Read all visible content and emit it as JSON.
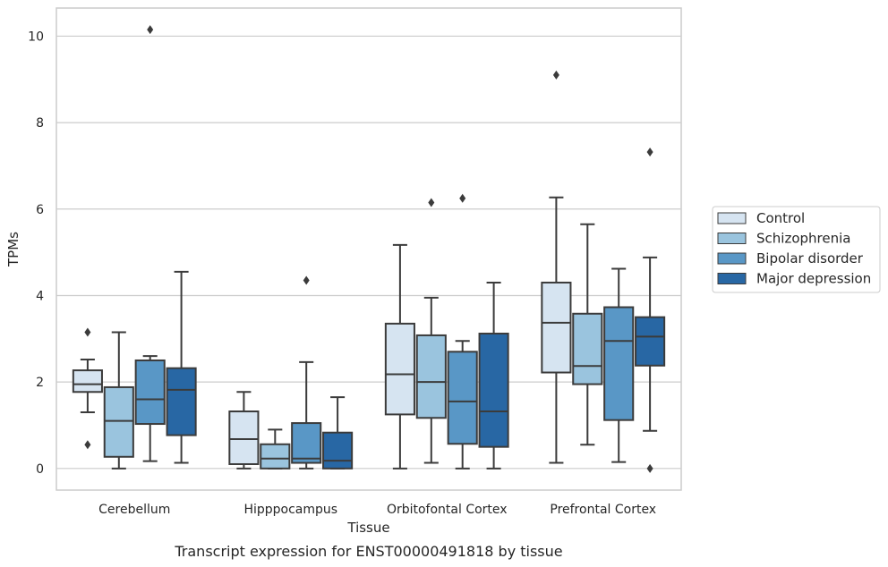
{
  "chart_data": {
    "type": "box",
    "title": "",
    "caption": "Transcript expression for ENST00000491818 by tissue",
    "xlabel": "Tissue",
    "ylabel": "TPMs",
    "ylim": [
      -0.5,
      10.65
    ],
    "yticks": [
      0,
      2,
      4,
      6,
      8,
      10
    ],
    "grid": "horizontal",
    "legend_position": "right",
    "categories": [
      "Cerebellum",
      "Hipppocampus",
      "Orbitofontal Cortex",
      "Prefrontal Cortex"
    ],
    "series": [
      {
        "name": "Control",
        "color": "#d6e4f1",
        "boxes": [
          {
            "whislo": 1.3,
            "q1": 1.77,
            "med": 1.95,
            "q3": 2.27,
            "whishi": 2.52,
            "fliers": [
              3.15,
              0.55
            ]
          },
          {
            "whislo": 0.0,
            "q1": 0.1,
            "med": 0.68,
            "q3": 1.32,
            "whishi": 1.77,
            "fliers": []
          },
          {
            "whislo": 0.0,
            "q1": 1.25,
            "med": 2.18,
            "q3": 3.35,
            "whishi": 5.17,
            "fliers": []
          },
          {
            "whislo": 0.13,
            "q1": 2.22,
            "med": 3.37,
            "q3": 4.3,
            "whishi": 6.27,
            "fliers": [
              9.1
            ]
          }
        ]
      },
      {
        "name": "Schizophrenia",
        "color": "#9ac4de",
        "boxes": [
          {
            "whislo": 0.0,
            "q1": 0.27,
            "med": 1.1,
            "q3": 1.88,
            "whishi": 3.15,
            "fliers": []
          },
          {
            "whislo": 0.0,
            "q1": 0.0,
            "med": 0.23,
            "q3": 0.56,
            "whishi": 0.9,
            "fliers": []
          },
          {
            "whislo": 0.13,
            "q1": 1.17,
            "med": 2.0,
            "q3": 3.08,
            "whishi": 3.95,
            "fliers": [
              6.15
            ]
          },
          {
            "whislo": 0.55,
            "q1": 1.95,
            "med": 2.37,
            "q3": 3.58,
            "whishi": 5.65,
            "fliers": []
          }
        ]
      },
      {
        "name": "Bipolar disorder",
        "color": "#5997c6",
        "boxes": [
          {
            "whislo": 0.17,
            "q1": 1.03,
            "med": 1.6,
            "q3": 2.5,
            "whishi": 2.6,
            "fliers": [
              10.15
            ]
          },
          {
            "whislo": 0.0,
            "q1": 0.13,
            "med": 0.23,
            "q3": 1.05,
            "whishi": 2.46,
            "fliers": [
              4.35
            ]
          },
          {
            "whislo": 0.0,
            "q1": 0.57,
            "med": 1.55,
            "q3": 2.7,
            "whishi": 2.95,
            "fliers": [
              6.25
            ]
          },
          {
            "whislo": 0.15,
            "q1": 1.12,
            "med": 2.95,
            "q3": 3.73,
            "whishi": 4.62,
            "fliers": []
          }
        ]
      },
      {
        "name": "Major depression",
        "color": "#2867a4",
        "boxes": [
          {
            "whislo": 0.13,
            "q1": 0.77,
            "med": 1.82,
            "q3": 2.32,
            "whishi": 4.55,
            "fliers": []
          },
          {
            "whislo": 0.0,
            "q1": 0.0,
            "med": 0.18,
            "q3": 0.83,
            "whishi": 1.65,
            "fliers": []
          },
          {
            "whislo": 0.0,
            "q1": 0.5,
            "med": 1.32,
            "q3": 3.12,
            "whishi": 4.3,
            "fliers": []
          },
          {
            "whislo": 0.87,
            "q1": 2.38,
            "med": 3.05,
            "q3": 3.5,
            "whishi": 4.88,
            "fliers": [
              7.32,
              0.0
            ]
          }
        ]
      }
    ]
  }
}
